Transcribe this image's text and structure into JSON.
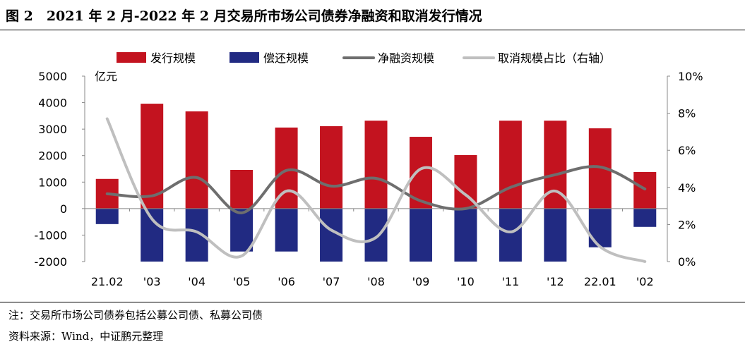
{
  "title": "图 2　2021 年 2 月-2022 年 2 月交易所市场公司债券净融资和取消发行情况",
  "notes": [
    "注：交易所市场公司债券包括公募公司债、私募公司债",
    "资料来源：Wind，中证鹏元整理"
  ],
  "chart_data": {
    "type": "bar",
    "categories": [
      "21.02",
      "'03",
      "'04",
      "'05",
      "'06",
      "'07",
      "'08",
      "'09",
      "'10",
      "'11",
      "'12",
      "22.01",
      "'02"
    ],
    "left_axis": {
      "label": "亿元",
      "range": [
        -2000,
        5000
      ],
      "ticks": [
        5000,
        4000,
        3000,
        2000,
        1000,
        0,
        -1000,
        -2000
      ]
    },
    "right_axis": {
      "range": [
        0,
        10
      ],
      "ticks": [
        "10%",
        "8%",
        "6%",
        "4%",
        "2%",
        "0%"
      ]
    },
    "legend_position": "top",
    "grid": false,
    "series": [
      {
        "name": "发行规模",
        "type": "bar",
        "axis": "left",
        "color": "#C3131F",
        "values": [
          1120,
          3960,
          3670,
          1460,
          3060,
          3110,
          3320,
          2710,
          2020,
          3320,
          3320,
          3030,
          1380
        ]
      },
      {
        "name": "偿还规模",
        "type": "bar",
        "axis": "left",
        "color": "#212A82",
        "values": [
          -585,
          -2000,
          -2000,
          -1620,
          -1620,
          -2000,
          -2000,
          -2000,
          -2000,
          -2000,
          -2000,
          -1460,
          -690
        ]
      },
      {
        "name": "净融资规模",
        "type": "line",
        "axis": "left",
        "color": "#6E6E6E",
        "values": [
          560,
          480,
          1170,
          -160,
          1440,
          850,
          1140,
          290,
          0,
          800,
          1280,
          1570,
          740
        ]
      },
      {
        "name": "取消规模占比（右轴）",
        "type": "line",
        "axis": "right",
        "color": "#BFBFBF",
        "values": [
          7.7,
          2.3,
          1.6,
          0.3,
          3.8,
          1.7,
          1.3,
          5.0,
          3.6,
          1.6,
          3.8,
          0.8,
          0.0
        ]
      }
    ]
  }
}
